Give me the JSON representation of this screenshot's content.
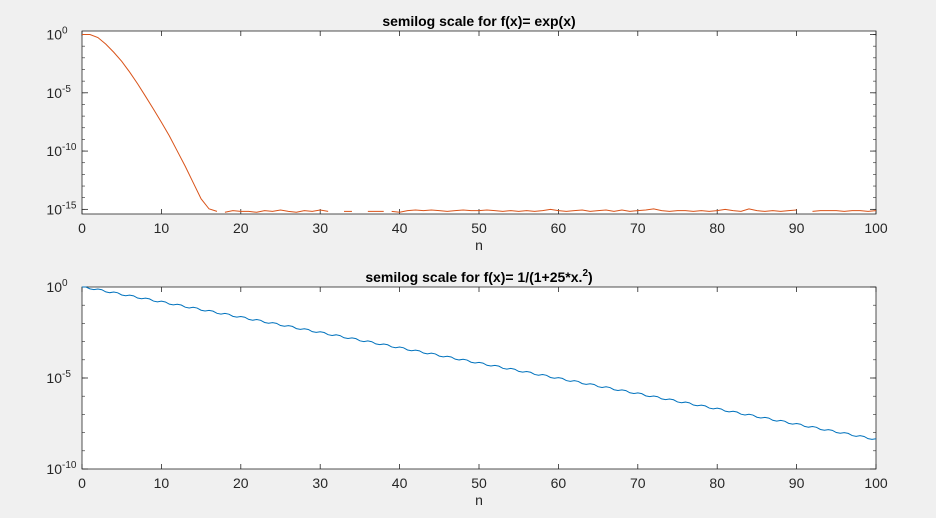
{
  "chart_data": [
    {
      "type": "line",
      "title": "semilog scale for f(x)= exp(x)",
      "xlabel": "n",
      "ylabel": "",
      "yscale": "log",
      "xlim": [
        0,
        100
      ],
      "ylim": [
        4e-16,
        2
      ],
      "xticks": [
        "0",
        "10",
        "20",
        "30",
        "40",
        "50",
        "60",
        "70",
        "80",
        "90",
        "100"
      ],
      "yticks": [
        {
          "base": "10",
          "exp": "0",
          "value": 1
        },
        {
          "base": "10",
          "exp": "-5",
          "value": 1e-05
        },
        {
          "base": "10",
          "exp": "-10",
          "value": 1e-10
        },
        {
          "base": "10",
          "exp": "-15",
          "value": 1e-15
        }
      ],
      "grid": false,
      "series": [
        {
          "color": "#d95319",
          "segments": [
            [
              [
                0,
                1
              ],
              [
                1,
                1
              ],
              [
                2,
                0.55
              ],
              [
                3,
                0.15
              ],
              [
                4,
                0.03
              ],
              [
                5,
                0.005
              ],
              [
                6,
                0.0006
              ],
              [
                7,
                6e-05
              ],
              [
                8,
                5e-06
              ],
              [
                9,
                4e-07
              ],
              [
                10,
                3e-08
              ],
              [
                11,
                2e-09
              ],
              [
                12,
                1e-10
              ],
              [
                13,
                5e-12
              ],
              [
                14,
                2e-13
              ],
              [
                15,
                8e-15
              ],
              [
                16,
                1.1e-15
              ],
              [
                17,
                6.7e-16
              ]
            ],
            [
              [
                18,
                5.6e-16
              ],
              [
                19,
                7.8e-16
              ],
              [
                20,
                6.7e-16
              ],
              [
                21,
                6.7e-16
              ],
              [
                22,
                5.6e-16
              ],
              [
                23,
                7.8e-16
              ],
              [
                24,
                6.7e-16
              ],
              [
                25,
                8.9e-16
              ],
              [
                26,
                6.7e-16
              ],
              [
                27,
                5.6e-16
              ],
              [
                28,
                7.8e-16
              ],
              [
                29,
                6.7e-16
              ],
              [
                30,
                8.9e-16
              ],
              [
                31,
                6.7e-16
              ]
            ],
            [
              [
                33,
                6.7e-16
              ],
              [
                34,
                6.7e-16
              ]
            ],
            [
              [
                36,
                6.7e-16
              ],
              [
                37,
                6.7e-16
              ],
              [
                38,
                6.7e-16
              ]
            ],
            [
              [
                39,
                6.7e-16
              ],
              [
                40,
                5.6e-16
              ],
              [
                41,
                7.8e-16
              ],
              [
                42,
                8.9e-16
              ],
              [
                43,
                7.8e-16
              ],
              [
                44,
                8.9e-16
              ],
              [
                45,
                7.8e-16
              ],
              [
                46,
                6.7e-16
              ],
              [
                47,
                7.8e-16
              ],
              [
                48,
                8.9e-16
              ],
              [
                49,
                7.8e-16
              ],
              [
                50,
                7.8e-16
              ],
              [
                51,
                8.9e-16
              ],
              [
                52,
                7.8e-16
              ],
              [
                53,
                6.7e-16
              ],
              [
                54,
                7.8e-16
              ],
              [
                55,
                6.7e-16
              ],
              [
                56,
                7.8e-16
              ],
              [
                57,
                6.7e-16
              ],
              [
                58,
                7.8e-16
              ],
              [
                59,
                1e-15
              ],
              [
                60,
                7.8e-16
              ],
              [
                61,
                6.7e-16
              ],
              [
                62,
                7.8e-16
              ],
              [
                63,
                8.9e-16
              ],
              [
                64,
                6.7e-16
              ],
              [
                65,
                7.8e-16
              ],
              [
                66,
                8.9e-16
              ],
              [
                67,
                6.7e-16
              ],
              [
                68,
                8.9e-16
              ],
              [
                69,
                6.7e-16
              ],
              [
                70,
                7.8e-16
              ],
              [
                71,
                8.9e-16
              ],
              [
                72,
                1.1e-15
              ],
              [
                73,
                7.8e-16
              ],
              [
                74,
                6.7e-16
              ],
              [
                75,
                7.8e-16
              ],
              [
                76,
                7.8e-16
              ],
              [
                77,
                6.7e-16
              ],
              [
                78,
                7.8e-16
              ],
              [
                79,
                6.7e-16
              ],
              [
                80,
                7.8e-16
              ],
              [
                81,
                1e-15
              ],
              [
                82,
                7.8e-16
              ],
              [
                83,
                6.7e-16
              ],
              [
                84,
                1.1e-15
              ],
              [
                85,
                7.8e-16
              ],
              [
                86,
                6.7e-16
              ],
              [
                87,
                7.8e-16
              ],
              [
                88,
                6.7e-16
              ],
              [
                89,
                7.8e-16
              ],
              [
                90,
                8.9e-16
              ]
            ],
            [
              [
                92,
                6.7e-16
              ],
              [
                93,
                7.8e-16
              ],
              [
                94,
                7.8e-16
              ],
              [
                95,
                7.8e-16
              ],
              [
                96,
                6.7e-16
              ],
              [
                97,
                7.8e-16
              ],
              [
                98,
                7.8e-16
              ],
              [
                99,
                6.7e-16
              ],
              [
                100,
                7.8e-16
              ]
            ]
          ]
        }
      ]
    },
    {
      "type": "line",
      "title": "semilog scale for f(x)= 1/(1+25*x.",
      "title_sup": "2",
      "title_suffix": ")",
      "xlabel": "n",
      "ylabel": "",
      "yscale": "log",
      "xlim": [
        0,
        100
      ],
      "ylim": [
        1e-10,
        1
      ],
      "xticks": [
        "0",
        "10",
        "20",
        "30",
        "40",
        "50",
        "60",
        "70",
        "80",
        "90",
        "100"
      ],
      "yticks": [
        {
          "base": "10",
          "exp": "0",
          "value": 1
        },
        {
          "base": "10",
          "exp": "-5",
          "value": 1e-05
        },
        {
          "base": "10",
          "exp": "-10",
          "value": 1e-10
        }
      ],
      "grid": false,
      "series": [
        {
          "color": "#0072bd",
          "decay_start": 1,
          "decay_end": 4e-09,
          "wiggle": 0.1,
          "x_range": [
            0,
            100
          ]
        }
      ]
    }
  ]
}
